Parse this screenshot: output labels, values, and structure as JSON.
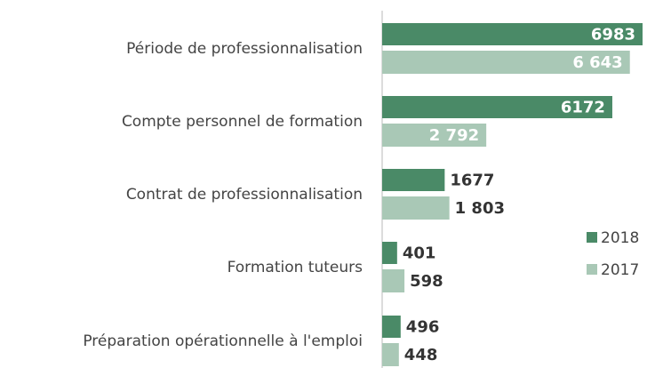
{
  "chart_data": {
    "type": "bar",
    "orientation": "horizontal",
    "categories": [
      "Période de professionnalisation",
      "Compte personnel de formation",
      "Contrat de professionnalisation",
      "Formation tuteurs",
      "Préparation opérationnelle à l'emploi"
    ],
    "series": [
      {
        "name": "2018",
        "color": "#4a8a67",
        "values": [
          6983,
          6172,
          1677,
          401,
          496
        ]
      },
      {
        "name": "2017",
        "color": "#a9c8b6",
        "values": [
          6643,
          2792,
          1803,
          598,
          448
        ],
        "value_labels": [
          "6 643",
          "2 792",
          "1 803",
          "598",
          "448"
        ]
      }
    ],
    "legend": "right"
  }
}
